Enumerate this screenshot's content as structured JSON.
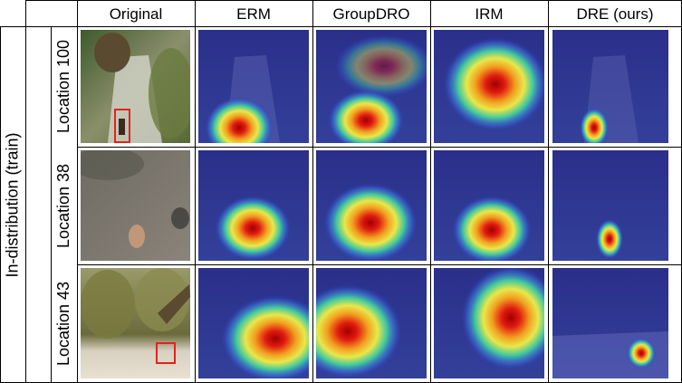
{
  "figure": {
    "columns": [
      "Original",
      "ERM",
      "GroupDRO",
      "IRM",
      "DRE (ours)"
    ],
    "group_label": "In-distribution (train)",
    "rows": [
      {
        "label": "Location 100",
        "scene": "forest-path"
      },
      {
        "label": "Location 38",
        "scene": "dirt-ground"
      },
      {
        "label": "Location 43",
        "scene": "palm-pipe"
      }
    ]
  },
  "colors": {
    "heat_cold": "#1a1e8c",
    "heat_hot": "#d41010",
    "box": "#e0241c"
  }
}
